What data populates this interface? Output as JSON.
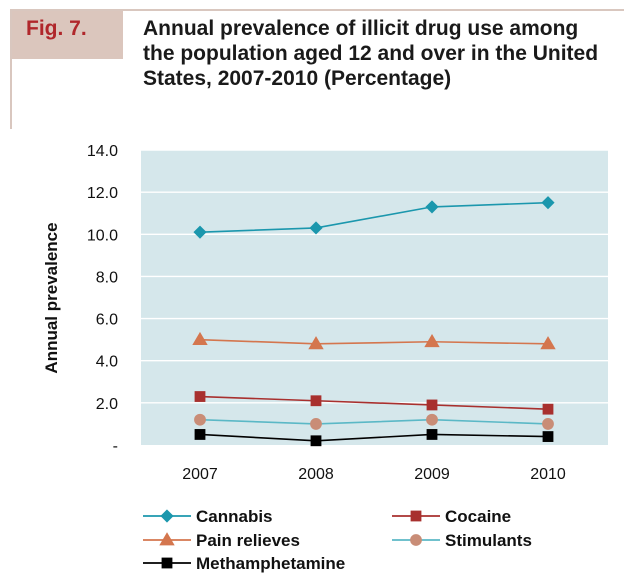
{
  "figure": {
    "label": "Fig. 7.",
    "title": "Annual prevalence of illicit drug use among the population aged 12 and over in the United States, 2007-2010 (Percentage)"
  },
  "chart_data": {
    "type": "line",
    "title": "Annual prevalence of illicit drug use among the population aged 12 and over in the United States, 2007-2010 (Percentage)",
    "xlabel": "",
    "ylabel": "Annual prevalence",
    "x": [
      "2007",
      "2008",
      "2009",
      "2010"
    ],
    "ylim": [
      0,
      14
    ],
    "yticks": [
      0,
      2,
      4,
      6,
      8,
      10,
      12,
      14
    ],
    "ytick_labels": [
      "-",
      "2.0",
      "4.0",
      "6.0",
      "8.0",
      "10.0",
      "12.0",
      "14.0"
    ],
    "grid": true,
    "plot_background": "#d5e7eb",
    "legend_position": "bottom",
    "series": [
      {
        "name": "Cannabis",
        "values": [
          10.1,
          10.3,
          11.3,
          11.5
        ],
        "color": "#1b97ad",
        "marker": "diamond"
      },
      {
        "name": "Cocaine",
        "values": [
          2.3,
          2.1,
          1.9,
          1.7
        ],
        "color": "#a8302e",
        "marker": "square"
      },
      {
        "name": "Pain relieves",
        "values": [
          5.0,
          4.8,
          4.9,
          4.8
        ],
        "color": "#d4764e",
        "marker": "triangle"
      },
      {
        "name": "Stimulants",
        "values": [
          1.2,
          1.0,
          1.2,
          1.0
        ],
        "color": "#5bb8c6",
        "marker": "circle",
        "marker_color": "#c98d77"
      },
      {
        "name": "Methamphetamine",
        "values": [
          0.5,
          0.2,
          0.5,
          0.4
        ],
        "color": "#000000",
        "marker": "square"
      }
    ]
  }
}
